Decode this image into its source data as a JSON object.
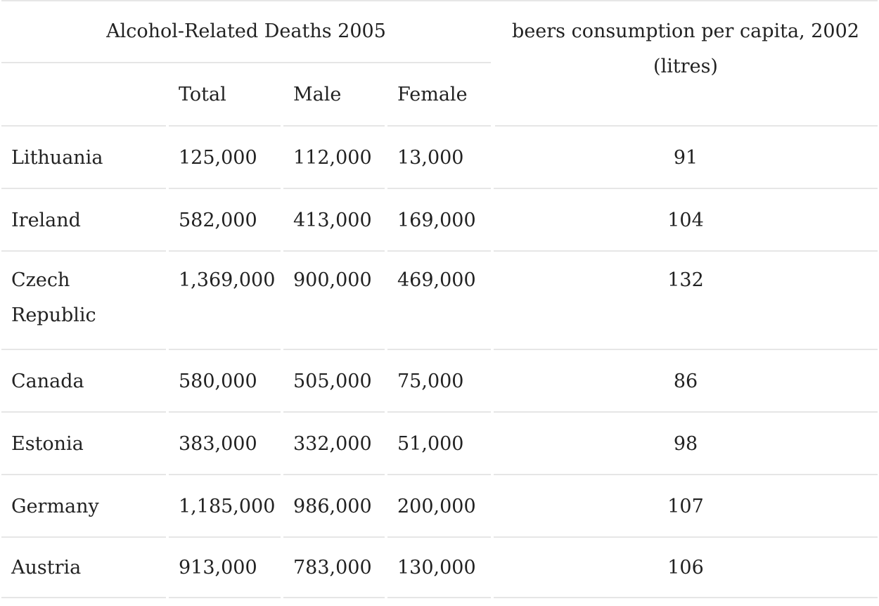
{
  "table": {
    "group_header": "Alcohol-Related Deaths 2005",
    "beer_header": "beers consumption per capita, 2002 (litres)",
    "sub_headers": [
      "Total",
      "Male",
      "Female"
    ],
    "rows": [
      {
        "country": "Lithuania",
        "total": "125,000",
        "male": "112,000",
        "female": "13,000",
        "beer": "91"
      },
      {
        "country": "Ireland",
        "total": "582,000",
        "male": "413,000",
        "female": "169,000",
        "beer": "104"
      },
      {
        "country": "Czech Republic",
        "total": "1,369,000",
        "male": "900,000",
        "female": "469,000",
        "beer": "132"
      },
      {
        "country": "Canada",
        "total": "580,000",
        "male": "505,000",
        "female": "75,000",
        "beer": "86"
      },
      {
        "country": "Estonia",
        "total": "383,000",
        "male": "332,000",
        "female": "51,000",
        "beer": "98"
      },
      {
        "country": "Germany",
        "total": "1,185,000",
        "male": "986,000",
        "female": "200,000",
        "beer": "107"
      },
      {
        "country": "Austria",
        "total": "913,000",
        "male": "783,000",
        "female": "130,000",
        "beer": "106"
      }
    ]
  }
}
